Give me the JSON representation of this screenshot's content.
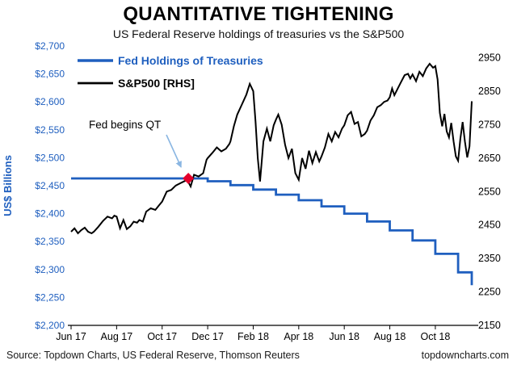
{
  "header": {
    "title": "QUANTITATIVE TIGHTENING",
    "subtitle": "US Federal Reserve holdings of treasuries vs the S&P500"
  },
  "footer": {
    "source": "Source: Topdown Charts, US Federal Reserve, Thomson Reuters",
    "site": "topdowncharts.com"
  },
  "chart_data": {
    "type": "line",
    "title": "QUANTITATIVE TIGHTENING",
    "subtitle": "US Federal Reserve holdings of treasuries vs the S&P500",
    "grid": false,
    "legend_position": "top-left-inside",
    "left_axis": {
      "label": "US$ Billions",
      "min": 2200,
      "max": 2700,
      "color": "#1f5fbf",
      "tick_values": [
        2200,
        2250,
        2300,
        2350,
        2400,
        2450,
        2500,
        2550,
        2600,
        2650,
        2700
      ],
      "tick_labels": [
        "$2,200",
        "$2,250",
        "$2,300",
        "$2,350",
        "$2,400",
        "$2,450",
        "$2,500",
        "$2,550",
        "$2,600",
        "$2,650",
        "$2,700"
      ]
    },
    "right_axis": {
      "min": 2150,
      "max": 2985,
      "color": "#000000",
      "tick_values": [
        2150,
        2250,
        2350,
        2450,
        2550,
        2650,
        2750,
        2850,
        2950
      ],
      "tick_labels": [
        "2150",
        "2250",
        "2350",
        "2450",
        "2550",
        "2650",
        "2750",
        "2850",
        "2950"
      ]
    },
    "x_axis": {
      "min": 0,
      "max": 17.6,
      "tick_values": [
        0,
        2,
        4,
        6,
        8,
        10,
        12,
        14,
        16
      ],
      "tick_labels": [
        "Jun 17",
        "Aug 17",
        "Oct 17",
        "Dec 17",
        "Feb 18",
        "Apr 18",
        "Jun 18",
        "Aug 18",
        "Oct 18"
      ]
    },
    "series": [
      {
        "name": "Fed Holdings of Treasuries",
        "axis": "left",
        "color": "#1f5fbf",
        "width": 2.8,
        "step": true,
        "points": [
          [
            0,
            2463
          ],
          [
            1,
            2463
          ],
          [
            2,
            2463
          ],
          [
            3,
            2463
          ],
          [
            4,
            2463
          ],
          [
            5,
            2463
          ],
          [
            6,
            2458
          ],
          [
            7,
            2451
          ],
          [
            8,
            2443
          ],
          [
            9,
            2434
          ],
          [
            10,
            2424
          ],
          [
            11,
            2413
          ],
          [
            12,
            2400
          ],
          [
            13,
            2386
          ],
          [
            14,
            2370
          ],
          [
            15,
            2352
          ],
          [
            16,
            2328
          ],
          [
            17,
            2295
          ],
          [
            17.6,
            2272
          ]
        ]
      },
      {
        "name": "S&P500 [RHS]",
        "axis": "right",
        "color": "#000000",
        "width": 2,
        "step": false,
        "points": [
          [
            0,
            2430
          ],
          [
            0.15,
            2440
          ],
          [
            0.3,
            2425
          ],
          [
            0.45,
            2435
          ],
          [
            0.6,
            2442
          ],
          [
            0.75,
            2430
          ],
          [
            0.9,
            2425
          ],
          [
            1.0,
            2430
          ],
          [
            1.2,
            2445
          ],
          [
            1.4,
            2462
          ],
          [
            1.6,
            2475
          ],
          [
            1.8,
            2470
          ],
          [
            1.9,
            2478
          ],
          [
            2.0,
            2475
          ],
          [
            2.15,
            2440
          ],
          [
            2.3,
            2465
          ],
          [
            2.45,
            2438
          ],
          [
            2.6,
            2446
          ],
          [
            2.75,
            2460
          ],
          [
            2.9,
            2457
          ],
          [
            3.0,
            2465
          ],
          [
            3.15,
            2460
          ],
          [
            3.3,
            2490
          ],
          [
            3.5,
            2500
          ],
          [
            3.7,
            2495
          ],
          [
            3.85,
            2508
          ],
          [
            4.0,
            2520
          ],
          [
            4.2,
            2550
          ],
          [
            4.4,
            2555
          ],
          [
            4.6,
            2568
          ],
          [
            4.8,
            2575
          ],
          [
            4.95,
            2580
          ],
          [
            5.1,
            2585
          ],
          [
            5.25,
            2565
          ],
          [
            5.4,
            2600
          ],
          [
            5.6,
            2595
          ],
          [
            5.8,
            2605
          ],
          [
            5.95,
            2645
          ],
          [
            6.0,
            2650
          ],
          [
            6.2,
            2665
          ],
          [
            6.4,
            2682
          ],
          [
            6.6,
            2670
          ],
          [
            6.8,
            2678
          ],
          [
            6.95,
            2692
          ],
          [
            7.0,
            2700
          ],
          [
            7.15,
            2745
          ],
          [
            7.3,
            2780
          ],
          [
            7.5,
            2810
          ],
          [
            7.7,
            2840
          ],
          [
            7.85,
            2872
          ],
          [
            8.0,
            2850
          ],
          [
            8.1,
            2760
          ],
          [
            8.2,
            2650
          ],
          [
            8.3,
            2580
          ],
          [
            8.45,
            2700
          ],
          [
            8.6,
            2738
          ],
          [
            8.75,
            2700
          ],
          [
            8.9,
            2748
          ],
          [
            9.0,
            2765
          ],
          [
            9.1,
            2780
          ],
          [
            9.25,
            2750
          ],
          [
            9.4,
            2690
          ],
          [
            9.55,
            2650
          ],
          [
            9.7,
            2678
          ],
          [
            9.85,
            2605
          ],
          [
            10.0,
            2585
          ],
          [
            10.15,
            2650
          ],
          [
            10.3,
            2618
          ],
          [
            10.45,
            2672
          ],
          [
            10.6,
            2635
          ],
          [
            10.75,
            2668
          ],
          [
            10.9,
            2640
          ],
          [
            11.0,
            2655
          ],
          [
            11.15,
            2682
          ],
          [
            11.3,
            2722
          ],
          [
            11.45,
            2700
          ],
          [
            11.6,
            2728
          ],
          [
            11.75,
            2712
          ],
          [
            11.9,
            2738
          ],
          [
            12.0,
            2748
          ],
          [
            12.15,
            2778
          ],
          [
            12.3,
            2788
          ],
          [
            12.45,
            2752
          ],
          [
            12.6,
            2758
          ],
          [
            12.75,
            2715
          ],
          [
            12.9,
            2722
          ],
          [
            13.0,
            2732
          ],
          [
            13.15,
            2762
          ],
          [
            13.3,
            2778
          ],
          [
            13.45,
            2802
          ],
          [
            13.6,
            2808
          ],
          [
            13.75,
            2818
          ],
          [
            13.9,
            2822
          ],
          [
            14.0,
            2832
          ],
          [
            14.1,
            2858
          ],
          [
            14.2,
            2838
          ],
          [
            14.35,
            2858
          ],
          [
            14.5,
            2878
          ],
          [
            14.65,
            2898
          ],
          [
            14.8,
            2902
          ],
          [
            14.9,
            2888
          ],
          [
            15.0,
            2900
          ],
          [
            15.15,
            2880
          ],
          [
            15.3,
            2908
          ],
          [
            15.45,
            2895
          ],
          [
            15.6,
            2918
          ],
          [
            15.75,
            2932
          ],
          [
            15.9,
            2920
          ],
          [
            16.0,
            2925
          ],
          [
            16.1,
            2885
          ],
          [
            16.2,
            2785
          ],
          [
            16.3,
            2745
          ],
          [
            16.4,
            2782
          ],
          [
            16.5,
            2730
          ],
          [
            16.6,
            2712
          ],
          [
            16.7,
            2755
          ],
          [
            16.8,
            2700
          ],
          [
            16.9,
            2655
          ],
          [
            17.0,
            2642
          ],
          [
            17.1,
            2708
          ],
          [
            17.2,
            2758
          ],
          [
            17.3,
            2700
          ],
          [
            17.4,
            2652
          ],
          [
            17.5,
            2685
          ],
          [
            17.6,
            2820
          ]
        ]
      }
    ],
    "marker": {
      "label": "Fed begins QT",
      "x": 5.15,
      "value": 2463,
      "axis": "left",
      "color": "#e4002b",
      "shape": "diamond"
    },
    "annotation": {
      "text": "Fed begins QT",
      "arrow_color": "#8ab6e2"
    }
  }
}
